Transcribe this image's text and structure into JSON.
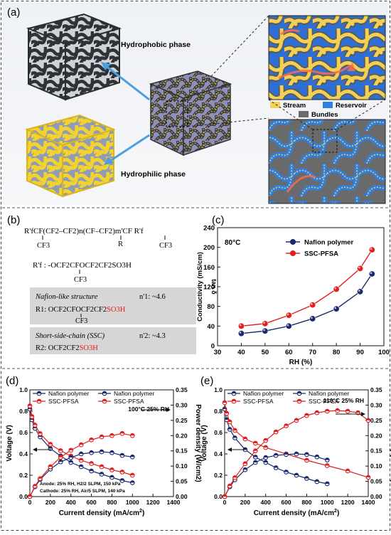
{
  "panel_a": {
    "label": "(a)",
    "hydrophobic_label": "Hydrophobic phase",
    "hydrophilic_label": "Hydrophilic phase",
    "legend": [
      {
        "name": "Stream",
        "color": "#f2d35a"
      },
      {
        "name": "Reservoir",
        "color": "#2d7fe0"
      },
      {
        "name": "Bundles",
        "color": "#6b6b6b"
      }
    ]
  },
  "panel_b": {
    "label": "(b)",
    "formula_top": "R'fCF(CF2–CF2)n(CF–CF2)m'CF R'f",
    "formula_top_sub_left": "CF3",
    "formula_top_r": "R",
    "formula_top_sub_right": "CF3",
    "rf_line": "R'f : -OCF2CFOCF2CF2SO3H",
    "rf_sub": "CF3",
    "nafion_title": "Nafion-like structure",
    "nafion_n": "n'1: ~4.6",
    "nafion_r1_prefix": "R1: OCF2CFOCF2CF2",
    "nafion_r1_acid": "SO3H",
    "nafion_r1_sub": "CF3",
    "ssc_title": "Short-side-chain (SSC)",
    "ssc_n": "n'2: ~4.3",
    "ssc_r2_prefix": "R2: OCF2CF2",
    "ssc_r2_acid": "SO3H"
  },
  "chart_data": [
    {
      "id": "c",
      "label": "(c)",
      "type": "line",
      "annotation": "80°C",
      "xlabel": "RH (%)",
      "ylabel": "Conductivity (mS/cm)",
      "ylabel_overlay": "tan δ",
      "xlim": [
        30,
        100
      ],
      "ylim": [
        0,
        240
      ],
      "xticks": [
        "30",
        "40",
        "50",
        "60",
        "70",
        "80",
        "90",
        "100"
      ],
      "yticks": [
        "0",
        "40",
        "80",
        "120",
        "160",
        "200",
        "240"
      ],
      "x": [
        40,
        50,
        60,
        70,
        80,
        90,
        95
      ],
      "series": [
        {
          "name": "Nafion polymer",
          "color": "#1a2a6c",
          "values": [
            25,
            30,
            40,
            55,
            75,
            110,
            146
          ]
        },
        {
          "name": "SSC-PFSA",
          "color": "#e02020",
          "values": [
            40,
            45,
            62,
            83,
            115,
            157,
            195
          ]
        }
      ]
    },
    {
      "id": "d",
      "label": "(d)",
      "type": "line",
      "annotation": "100°C 25% RH",
      "conditions": [
        "Anode: 25% RH, H2/2 SLPM, 150 kPa",
        "Cathode: 25% RH, Air/5 SLPM, 140 kPa"
      ],
      "xlabel": "Current density (mA/cm2)",
      "ylabel_left": "Voltage (V)",
      "ylabel_right": "Power density (W/cm2)",
      "xlim": [
        0,
        1400
      ],
      "ylim_left": [
        0,
        1.0
      ],
      "ylim_right": [
        0,
        0.35
      ],
      "xticks": [
        "0",
        "200",
        "400",
        "600",
        "800",
        "1000",
        "1200",
        "1400"
      ],
      "yticks_left": [
        "0.0",
        "0.2",
        "0.4",
        "0.6",
        "0.8",
        "1.0"
      ],
      "yticks_right": [
        "0.00",
        "0.05",
        "0.10",
        "0.15",
        "0.20",
        "0.25",
        "0.30",
        "0.35"
      ],
      "series": [
        {
          "name": "Nafion polymer",
          "axis": "left",
          "color": "#1a2a6c",
          "x": [
            0,
            20,
            50,
            100,
            200,
            300,
            400,
            500,
            600,
            700,
            800,
            900,
            1000
          ],
          "values": [
            0.82,
            0.72,
            0.64,
            0.56,
            0.45,
            0.38,
            0.32,
            0.28,
            0.24,
            0.21,
            0.18,
            0.15,
            0.13
          ]
        },
        {
          "name": "SSC-PFSA",
          "axis": "left",
          "color": "#e02020",
          "x": [
            0,
            20,
            50,
            100,
            200,
            300,
            400,
            500,
            600,
            700,
            800,
            900,
            1000
          ],
          "values": [
            0.85,
            0.75,
            0.67,
            0.59,
            0.49,
            0.43,
            0.38,
            0.34,
            0.31,
            0.28,
            0.25,
            0.23,
            0.2
          ]
        },
        {
          "name": "Nafion polymer",
          "axis": "right",
          "color": "#1a2a6c",
          "x": [
            0,
            50,
            100,
            200,
            300,
            400,
            500,
            600,
            700,
            800,
            900,
            1000
          ],
          "values": [
            0.0,
            0.032,
            0.056,
            0.09,
            0.114,
            0.128,
            0.14,
            0.144,
            0.147,
            0.144,
            0.135,
            0.13
          ]
        },
        {
          "name": "SSC-PFSA",
          "axis": "right",
          "color": "#e02020",
          "x": [
            0,
            50,
            100,
            200,
            300,
            400,
            500,
            600,
            700,
            800,
            900,
            1000
          ],
          "values": [
            0.0,
            0.034,
            0.059,
            0.098,
            0.129,
            0.152,
            0.17,
            0.186,
            0.196,
            0.2,
            0.207,
            0.2
          ]
        }
      ]
    },
    {
      "id": "e",
      "label": "(e)",
      "type": "line",
      "annotation": "110°C 25% RH",
      "xlabel": "Current density (mA/cm2)",
      "ylabel_left": "Voltage (V)",
      "ylabel_right": "Power density (W/cm2)",
      "xlim": [
        0,
        1400
      ],
      "ylim_left": [
        0,
        1.0
      ],
      "ylim_right": [
        0,
        0.35
      ],
      "xticks": [
        "0",
        "200",
        "400",
        "600",
        "800",
        "1000",
        "1200",
        "1400"
      ],
      "yticks_left": [
        "0.0",
        "0.2",
        "0.4",
        "0.6",
        "0.8",
        "1.0"
      ],
      "yticks_right": [
        "0.00",
        "0.05",
        "0.10",
        "0.15",
        "0.20",
        "0.25",
        "0.30",
        "0.35"
      ],
      "series": [
        {
          "name": "Nafion polymer",
          "axis": "left",
          "color": "#1a2a6c",
          "x": [
            0,
            20,
            50,
            100,
            200,
            300,
            400,
            500,
            600,
            700,
            800,
            900,
            1000
          ],
          "values": [
            0.82,
            0.72,
            0.63,
            0.55,
            0.44,
            0.37,
            0.32,
            0.27,
            0.23,
            0.2,
            0.17,
            0.14,
            0.12
          ]
        },
        {
          "name": "SSC-PFSA",
          "axis": "left",
          "color": "#e02020",
          "x": [
            0,
            20,
            50,
            100,
            200,
            300,
            400,
            600,
            800,
            1000,
            1200,
            1400
          ],
          "values": [
            0.88,
            0.78,
            0.7,
            0.62,
            0.54,
            0.5,
            0.46,
            0.4,
            0.34,
            0.29,
            0.24,
            0.18
          ]
        },
        {
          "name": "Nafion polymer",
          "axis": "right",
          "color": "#1a2a6c",
          "x": [
            0,
            50,
            100,
            200,
            300,
            400,
            500,
            600,
            700,
            800,
            900,
            1000
          ],
          "values": [
            0.0,
            0.032,
            0.055,
            0.088,
            0.112,
            0.128,
            0.135,
            0.138,
            0.14,
            0.138,
            0.13,
            0.12
          ]
        },
        {
          "name": "SSC-PFSA",
          "axis": "right",
          "color": "#e02020",
          "x": [
            0,
            50,
            100,
            200,
            300,
            400,
            500,
            600,
            700,
            800,
            900,
            1000,
            1100,
            1200,
            1300,
            1400
          ],
          "values": [
            0.0,
            0.035,
            0.062,
            0.108,
            0.15,
            0.184,
            0.212,
            0.232,
            0.25,
            0.266,
            0.275,
            0.28,
            0.282,
            0.28,
            0.275,
            0.25
          ]
        }
      ]
    }
  ]
}
